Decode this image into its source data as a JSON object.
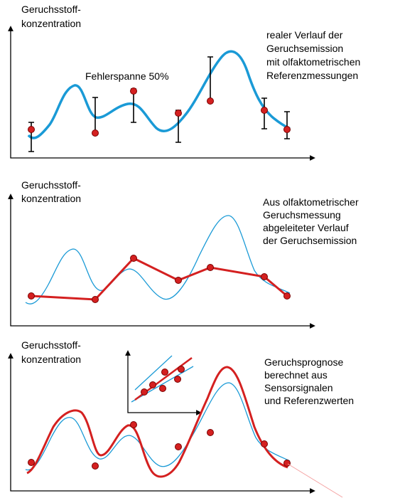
{
  "panels": [
    {
      "axis_label": [
        "Geruchsstoff-",
        "konzentration"
      ],
      "annotation": [
        "realer Verlauf der",
        "Geruchsemission",
        "mit olfaktometrischen",
        "Referenzmessungen"
      ],
      "error_label": "Fehlerspanne 50%"
    },
    {
      "axis_label": [
        "Geruchsstoff-",
        "konzentration"
      ],
      "annotation": [
        "Aus olfaktometrischer",
        "Geruchsmessung",
        "abgeleiteter Verlauf",
        "der Geruchsemission"
      ]
    },
    {
      "axis_label": [
        "Geruchsstoff-",
        "konzentration"
      ],
      "annotation": [
        "Geruchsprognose",
        "berechnet aus",
        "Sensorsignalen",
        "und Referenzwerten"
      ]
    }
  ]
}
